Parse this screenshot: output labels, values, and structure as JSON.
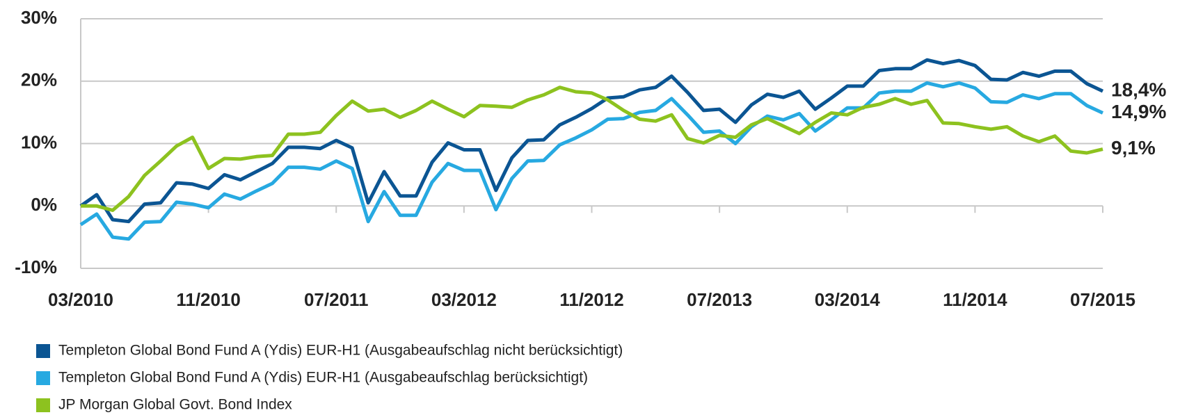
{
  "chart_data": {
    "type": "line",
    "categories": [
      "03/2010",
      null,
      null,
      null,
      null,
      null,
      null,
      null,
      "11/2010",
      null,
      null,
      null,
      null,
      null,
      null,
      null,
      "07/2011",
      null,
      null,
      null,
      null,
      null,
      null,
      null,
      "03/2012",
      null,
      null,
      null,
      null,
      null,
      null,
      null,
      "11/2012",
      null,
      null,
      null,
      null,
      null,
      null,
      null,
      "07/2013",
      null,
      null,
      null,
      null,
      null,
      null,
      null,
      "03/2014",
      null,
      null,
      null,
      null,
      null,
      null,
      null,
      "11/2014",
      null,
      null,
      null,
      null,
      null,
      null,
      null,
      "07/2015"
    ],
    "ylim": [
      -10,
      30
    ],
    "yticks": [
      {
        "value": -10,
        "label": "-10%"
      },
      {
        "value": 0,
        "label": "0%"
      },
      {
        "value": 10,
        "label": "10%"
      },
      {
        "value": 20,
        "label": "20%"
      },
      {
        "value": 30,
        "label": "30%"
      }
    ],
    "grid": true,
    "legend": "bottom-left",
    "series": [
      {
        "name": "Templeton Global Bond Fund A (Ydis) EUR-H1 (Ausgabeaufschlag nicht berücksichtigt)",
        "color": "#0b5593",
        "values": [
          0,
          1.8,
          -2.2,
          -2.5,
          0.3,
          0.5,
          3.7,
          3.5,
          2.8,
          5.0,
          4.2,
          5.5,
          6.8,
          9.4,
          9.4,
          9.2,
          10.5,
          9.3,
          0.5,
          5.5,
          1.6,
          1.6,
          7.0,
          10.1,
          9.0,
          9.0,
          2.5,
          7.7,
          10.5,
          10.6,
          13.0,
          14.2,
          15.6,
          17.3,
          17.5,
          18.6,
          19.0,
          20.8,
          18.2,
          15.3,
          15.5,
          13.4,
          16.2,
          17.9,
          17.4,
          18.4,
          15.5,
          17.3,
          19.2,
          19.2,
          21.7,
          22.0,
          22.0,
          23.4,
          22.8,
          23.3,
          22.5,
          20.3,
          20.2,
          21.4,
          20.8,
          21.6,
          21.6,
          19.6,
          18.4
        ],
        "value_labels": [
          null,
          null,
          null,
          null,
          null,
          null,
          null,
          null,
          null,
          null,
          null,
          null,
          null,
          null,
          null,
          null,
          null,
          null,
          null,
          null,
          null,
          null,
          null,
          null,
          null,
          null,
          null,
          null,
          null,
          null,
          null,
          null,
          null,
          null,
          null,
          null,
          null,
          null,
          null,
          null,
          null,
          null,
          null,
          null,
          null,
          null,
          null,
          null,
          null,
          null,
          null,
          null,
          null,
          null,
          null,
          null,
          null,
          null,
          null,
          null,
          null,
          null,
          null,
          null,
          "18,4%"
        ]
      },
      {
        "name": "Templeton Global Bond Fund A (Ydis) EUR-H1 (Ausgabeaufschlag berücksichtigt)",
        "color": "#27a9e1",
        "values": [
          -3.0,
          -1.3,
          -5.0,
          -5.3,
          -2.6,
          -2.5,
          0.6,
          0.3,
          -0.3,
          1.9,
          1.1,
          2.4,
          3.6,
          6.2,
          6.2,
          5.9,
          7.2,
          6.0,
          -2.5,
          2.3,
          -1.5,
          -1.5,
          3.8,
          6.8,
          5.7,
          5.7,
          -0.6,
          4.4,
          7.2,
          7.3,
          9.8,
          10.9,
          12.2,
          13.9,
          14.0,
          15.0,
          15.3,
          17.2,
          14.6,
          11.8,
          12.0,
          10.0,
          12.7,
          14.4,
          13.8,
          14.8,
          12.0,
          13.8,
          15.7,
          15.7,
          18.1,
          18.4,
          18.4,
          19.7,
          19.1,
          19.7,
          18.9,
          16.7,
          16.6,
          17.8,
          17.2,
          18.0,
          18.0,
          16.1,
          14.9
        ],
        "value_labels": [
          null,
          null,
          null,
          null,
          null,
          null,
          null,
          null,
          null,
          null,
          null,
          null,
          null,
          null,
          null,
          null,
          null,
          null,
          null,
          null,
          null,
          null,
          null,
          null,
          null,
          null,
          null,
          null,
          null,
          null,
          null,
          null,
          null,
          null,
          null,
          null,
          null,
          null,
          null,
          null,
          null,
          null,
          null,
          null,
          null,
          null,
          null,
          null,
          null,
          null,
          null,
          null,
          null,
          null,
          null,
          null,
          null,
          null,
          null,
          null,
          null,
          null,
          null,
          null,
          "14,9%"
        ]
      },
      {
        "name": "JP Morgan Global Govt. Bond Index",
        "color": "#8dc21f",
        "values": [
          0,
          0,
          -0.7,
          1.5,
          4.9,
          7.2,
          9.6,
          11.0,
          6.0,
          7.6,
          7.5,
          7.9,
          8.1,
          11.5,
          11.5,
          11.8,
          14.5,
          16.8,
          15.2,
          15.5,
          14.2,
          15.3,
          16.8,
          15.5,
          14.3,
          16.1,
          16.0,
          15.8,
          17.0,
          17.8,
          19.0,
          18.3,
          18.1,
          17.0,
          15.3,
          13.9,
          13.6,
          14.6,
          10.8,
          10.1,
          11.3,
          11.0,
          13.0,
          14.0,
          12.8,
          11.6,
          13.4,
          14.9,
          14.6,
          15.8,
          16.3,
          17.2,
          16.3,
          16.9,
          13.3,
          13.2,
          12.7,
          12.3,
          12.7,
          11.2,
          10.3,
          11.2,
          8.8,
          8.5,
          9.1
        ],
        "value_labels": [
          null,
          null,
          null,
          null,
          null,
          null,
          null,
          null,
          null,
          null,
          null,
          null,
          null,
          null,
          null,
          null,
          null,
          null,
          null,
          null,
          null,
          null,
          null,
          null,
          null,
          null,
          null,
          null,
          null,
          null,
          null,
          null,
          null,
          null,
          null,
          null,
          null,
          null,
          null,
          null,
          null,
          null,
          null,
          null,
          null,
          null,
          null,
          null,
          null,
          null,
          null,
          null,
          null,
          null,
          null,
          null,
          null,
          null,
          null,
          null,
          null,
          null,
          null,
          null,
          "9,1%"
        ]
      }
    ]
  }
}
